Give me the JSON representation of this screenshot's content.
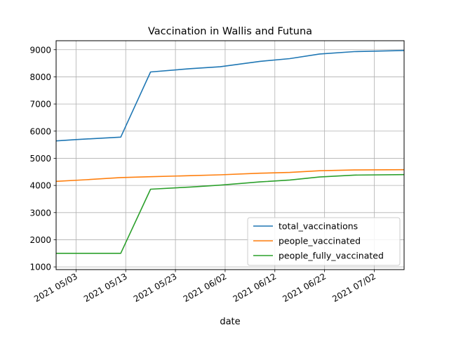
{
  "chart_data": {
    "type": "line",
    "title": "Vaccination in Wallis and Futuna",
    "xlabel": "date",
    "ylabel": "",
    "grid": true,
    "legend_position": "lower-right",
    "xlim": [
      "2021-04-29",
      "2021-07-08"
    ],
    "ylim": [
      900,
      9330
    ],
    "y_ticks": [
      1000,
      2000,
      3000,
      4000,
      5000,
      6000,
      7000,
      8000,
      9000
    ],
    "x_ticks": [
      "2021-05-03",
      "2021-05-13",
      "2021-05-23",
      "2021-06-02",
      "2021-06-12",
      "2021-06-22",
      "2021-07-02"
    ],
    "x_tick_labels": [
      "2021 05/03",
      "2021 05/13",
      "2021 05/23",
      "2021 06/02",
      "2021 06/12",
      "2021 06/22",
      "2021 07/02"
    ],
    "series": [
      {
        "name": "total_vaccinations",
        "color": "#1f77b4",
        "points": [
          [
            "2021-04-29",
            5640
          ],
          [
            "2021-05-03",
            5690
          ],
          [
            "2021-05-12",
            5780
          ],
          [
            "2021-05-18",
            8180
          ],
          [
            "2021-05-26",
            8300
          ],
          [
            "2021-06-01",
            8370
          ],
          [
            "2021-06-09",
            8570
          ],
          [
            "2021-06-15",
            8670
          ],
          [
            "2021-06-21",
            8840
          ],
          [
            "2021-06-28",
            8930
          ],
          [
            "2021-07-08",
            8970
          ]
        ]
      },
      {
        "name": "people_vaccinated",
        "color": "#ff7f0e",
        "points": [
          [
            "2021-04-29",
            4150
          ],
          [
            "2021-05-05",
            4210
          ],
          [
            "2021-05-12",
            4290
          ],
          [
            "2021-05-18",
            4320
          ],
          [
            "2021-05-26",
            4360
          ],
          [
            "2021-06-01",
            4390
          ],
          [
            "2021-06-09",
            4450
          ],
          [
            "2021-06-15",
            4480
          ],
          [
            "2021-06-21",
            4540
          ],
          [
            "2021-06-28",
            4570
          ],
          [
            "2021-07-08",
            4580
          ]
        ]
      },
      {
        "name": "people_fully_vaccinated",
        "color": "#2ca02c",
        "points": [
          [
            "2021-04-29",
            1500
          ],
          [
            "2021-05-12",
            1500
          ],
          [
            "2021-05-18",
            3860
          ],
          [
            "2021-05-26",
            3940
          ],
          [
            "2021-06-01",
            4010
          ],
          [
            "2021-06-09",
            4130
          ],
          [
            "2021-06-15",
            4200
          ],
          [
            "2021-06-21",
            4310
          ],
          [
            "2021-06-28",
            4380
          ],
          [
            "2021-07-08",
            4400
          ]
        ]
      }
    ]
  }
}
